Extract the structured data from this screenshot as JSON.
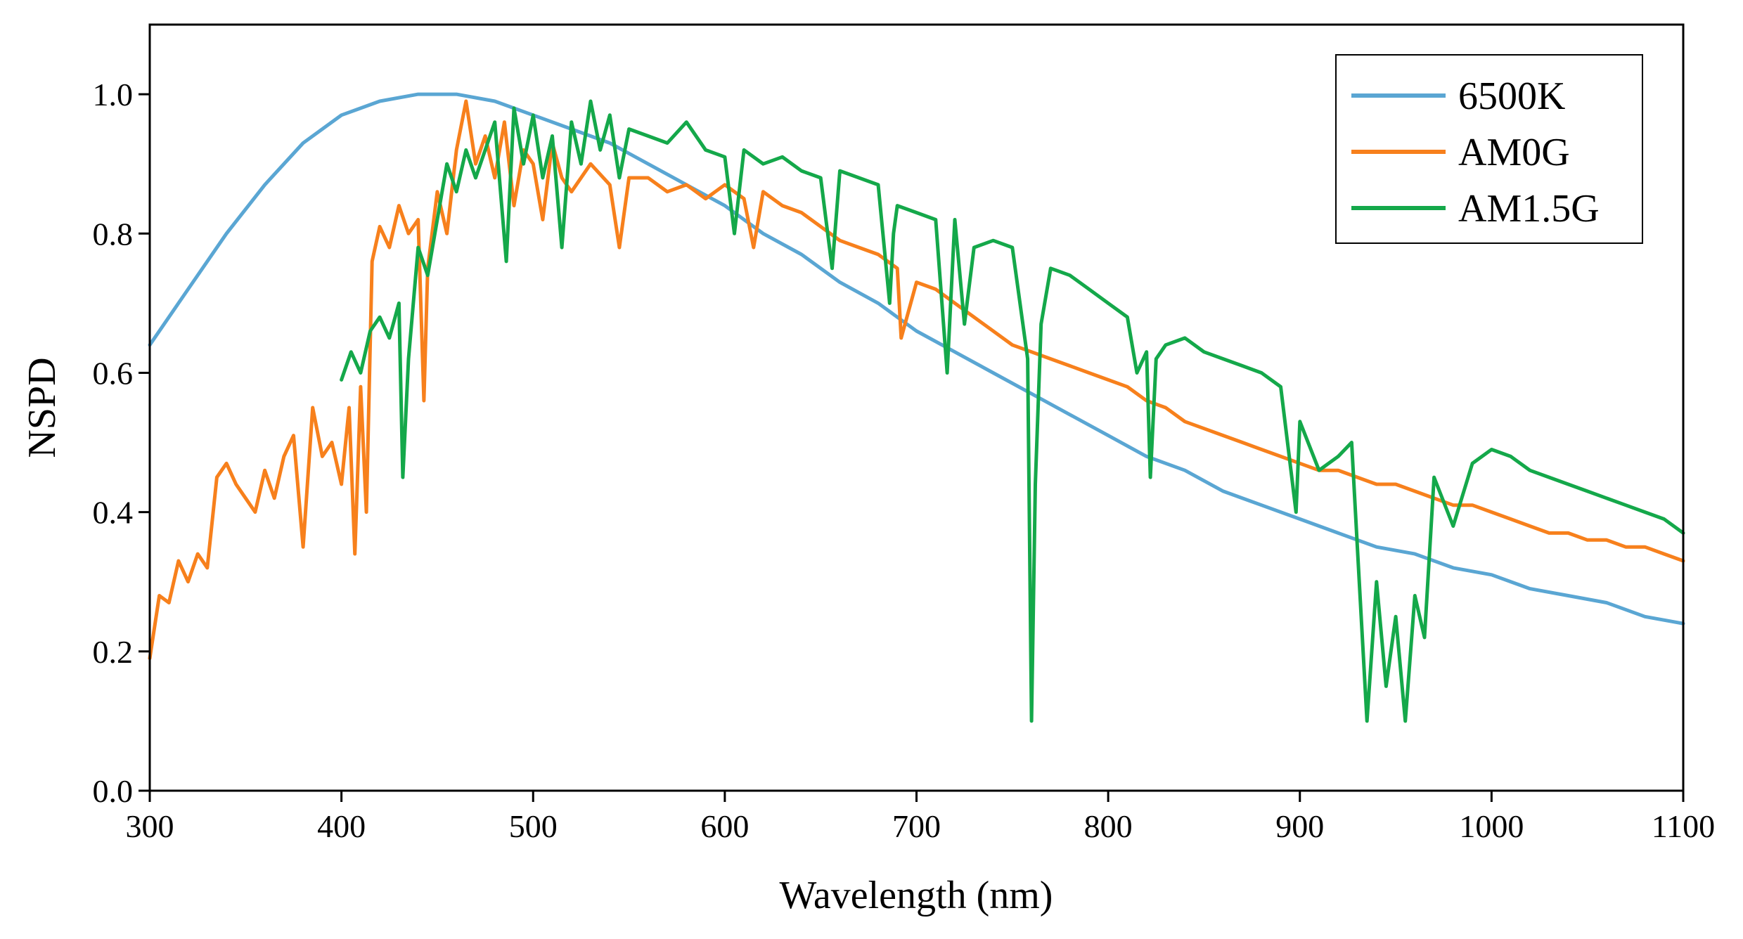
{
  "chart_data": {
    "type": "line",
    "title": "",
    "xlabel": "Wavelength (nm)",
    "ylabel": "NSPD",
    "xlim": [
      300,
      1100
    ],
    "ylim": [
      0.0,
      1.1
    ],
    "xticks": [
      "300",
      "400",
      "500",
      "600",
      "700",
      "800",
      "900",
      "1000",
      "1100"
    ],
    "yticks": [
      "0.0",
      "0.2",
      "0.4",
      "0.6",
      "0.8",
      "1.0"
    ],
    "legend_position": "top-right",
    "series": [
      {
        "name": "6500K",
        "color": "#5aa6d3",
        "x": [
          300,
          320,
          340,
          360,
          380,
          400,
          420,
          440,
          460,
          480,
          500,
          520,
          540,
          560,
          580,
          600,
          620,
          640,
          660,
          680,
          700,
          720,
          740,
          760,
          780,
          800,
          820,
          840,
          860,
          880,
          900,
          920,
          940,
          960,
          980,
          1000,
          1020,
          1040,
          1060,
          1080,
          1100
        ],
        "y": [
          0.64,
          0.72,
          0.8,
          0.87,
          0.93,
          0.97,
          0.99,
          1.0,
          1.0,
          0.99,
          0.97,
          0.95,
          0.93,
          0.9,
          0.87,
          0.84,
          0.8,
          0.77,
          0.73,
          0.7,
          0.66,
          0.63,
          0.6,
          0.57,
          0.54,
          0.51,
          0.48,
          0.46,
          0.43,
          0.41,
          0.39,
          0.37,
          0.35,
          0.34,
          0.32,
          0.31,
          0.29,
          0.28,
          0.27,
          0.25,
          0.24
        ]
      },
      {
        "name": "AM0G",
        "color": "#f7801c",
        "x": [
          300,
          305,
          310,
          315,
          320,
          325,
          330,
          335,
          340,
          345,
          350,
          355,
          360,
          365,
          370,
          375,
          380,
          385,
          390,
          395,
          400,
          404,
          407,
          410,
          413,
          416,
          420,
          425,
          430,
          435,
          440,
          443,
          445,
          450,
          455,
          460,
          465,
          470,
          475,
          480,
          485,
          490,
          495,
          500,
          505,
          510,
          515,
          520,
          530,
          540,
          545,
          550,
          560,
          570,
          580,
          590,
          600,
          610,
          615,
          620,
          630,
          640,
          650,
          660,
          670,
          680,
          690,
          692,
          700,
          710,
          720,
          730,
          740,
          750,
          760,
          770,
          780,
          790,
          800,
          810,
          820,
          830,
          840,
          850,
          860,
          870,
          880,
          890,
          900,
          910,
          920,
          930,
          940,
          950,
          960,
          970,
          980,
          990,
          1000,
          1010,
          1020,
          1030,
          1040,
          1050,
          1060,
          1070,
          1080,
          1090,
          1100
        ],
        "y": [
          0.19,
          0.28,
          0.27,
          0.33,
          0.3,
          0.34,
          0.32,
          0.45,
          0.47,
          0.44,
          0.42,
          0.4,
          0.46,
          0.42,
          0.48,
          0.51,
          0.35,
          0.55,
          0.48,
          0.5,
          0.44,
          0.55,
          0.34,
          0.58,
          0.4,
          0.76,
          0.81,
          0.78,
          0.84,
          0.8,
          0.82,
          0.56,
          0.75,
          0.86,
          0.8,
          0.92,
          0.99,
          0.9,
          0.94,
          0.88,
          0.96,
          0.84,
          0.92,
          0.9,
          0.82,
          0.93,
          0.88,
          0.86,
          0.9,
          0.87,
          0.78,
          0.88,
          0.88,
          0.86,
          0.87,
          0.85,
          0.87,
          0.85,
          0.78,
          0.86,
          0.84,
          0.83,
          0.81,
          0.79,
          0.78,
          0.77,
          0.75,
          0.65,
          0.73,
          0.72,
          0.7,
          0.68,
          0.66,
          0.64,
          0.63,
          0.62,
          0.61,
          0.6,
          0.59,
          0.58,
          0.56,
          0.55,
          0.53,
          0.52,
          0.51,
          0.5,
          0.49,
          0.48,
          0.47,
          0.46,
          0.46,
          0.45,
          0.44,
          0.44,
          0.43,
          0.42,
          0.41,
          0.41,
          0.4,
          0.39,
          0.38,
          0.37,
          0.37,
          0.36,
          0.36,
          0.35,
          0.35,
          0.34,
          0.33
        ]
      },
      {
        "name": "AM1.5G",
        "color": "#14a84a",
        "x": [
          400,
          405,
          410,
          415,
          420,
          425,
          430,
          432,
          435,
          440,
          445,
          450,
          455,
          460,
          465,
          470,
          480,
          486,
          490,
          495,
          500,
          505,
          510,
          515,
          520,
          525,
          530,
          535,
          540,
          545,
          550,
          560,
          570,
          580,
          590,
          600,
          605,
          610,
          620,
          630,
          640,
          650,
          656,
          660,
          670,
          680,
          686,
          688,
          690,
          700,
          710,
          716,
          720,
          725,
          730,
          740,
          750,
          758,
          760,
          762,
          765,
          770,
          780,
          790,
          800,
          810,
          815,
          820,
          822,
          825,
          830,
          840,
          850,
          860,
          870,
          880,
          890,
          898,
          900,
          910,
          920,
          927,
          930,
          933,
          935,
          940,
          945,
          950,
          955,
          960,
          965,
          970,
          980,
          990,
          1000,
          1010,
          1020,
          1030,
          1040,
          1050,
          1060,
          1070,
          1080,
          1090,
          1100
        ],
        "y": [
          0.59,
          0.63,
          0.6,
          0.66,
          0.68,
          0.65,
          0.7,
          0.45,
          0.62,
          0.78,
          0.74,
          0.82,
          0.9,
          0.86,
          0.92,
          0.88,
          0.96,
          0.76,
          0.98,
          0.9,
          0.97,
          0.88,
          0.94,
          0.78,
          0.96,
          0.9,
          0.99,
          0.92,
          0.97,
          0.88,
          0.95,
          0.94,
          0.93,
          0.96,
          0.92,
          0.91,
          0.8,
          0.92,
          0.9,
          0.91,
          0.89,
          0.88,
          0.75,
          0.89,
          0.88,
          0.87,
          0.7,
          0.8,
          0.84,
          0.83,
          0.82,
          0.6,
          0.82,
          0.67,
          0.78,
          0.79,
          0.78,
          0.62,
          0.1,
          0.44,
          0.67,
          0.75,
          0.74,
          0.72,
          0.7,
          0.68,
          0.6,
          0.63,
          0.45,
          0.62,
          0.64,
          0.65,
          0.63,
          0.62,
          0.61,
          0.6,
          0.58,
          0.4,
          0.53,
          0.46,
          0.48,
          0.5,
          0.35,
          0.2,
          0.1,
          0.3,
          0.15,
          0.25,
          0.1,
          0.28,
          0.22,
          0.45,
          0.38,
          0.47,
          0.49,
          0.48,
          0.46,
          0.45,
          0.44,
          0.43,
          0.42,
          0.41,
          0.4,
          0.39,
          0.37
        ]
      }
    ]
  }
}
